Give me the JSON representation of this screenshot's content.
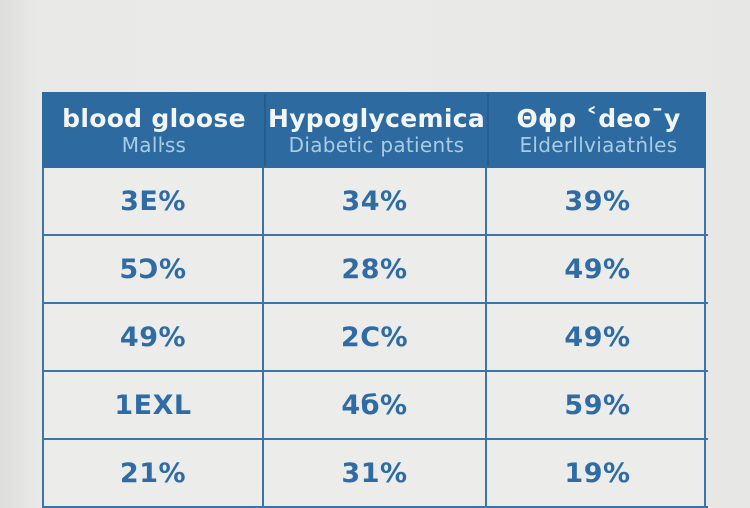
{
  "chart_data": {
    "type": "table",
    "title": "",
    "columns": [
      {
        "title": "blood gloose",
        "subtitle": "Malŀss"
      },
      {
        "title": "Hypoglycemica",
        "subtitle": "Diabetic patients"
      },
      {
        "title": "Θϕρ ˂deoˉy",
        "subtitle": "Elderllviaatṅles"
      }
    ],
    "rows": [
      [
        "3E%",
        "34%",
        "39%"
      ],
      [
        "5Ɔ%",
        "28%",
        "49%"
      ],
      [
        "49%",
        "2C%",
        "49%"
      ],
      [
        "1EXL",
        "4б%",
        "59%"
      ],
      [
        "21%",
        "31%",
        "19%"
      ]
    ],
    "layout": {
      "header_bg": "#2d6aa0",
      "header_title_color": "#f3f6f8",
      "header_subtitle_color": "#a9cbe4",
      "cell_bg": "#ececea",
      "cell_text_color": "#2f6ba5",
      "border_color": "#3a74a9",
      "page_bg": "#e9e9e7",
      "grid": true,
      "last_row_clipped_by_viewport": true
    }
  }
}
